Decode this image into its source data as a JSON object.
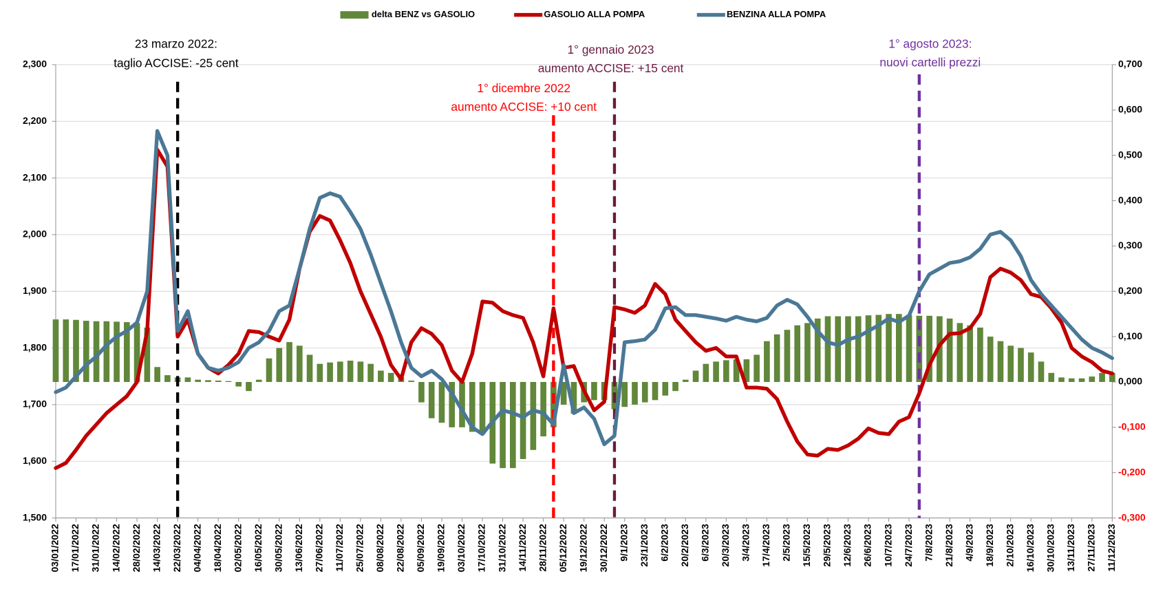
{
  "chart_data": {
    "type": "line-bar",
    "categories": [
      "03/01/2022",
      null,
      "17/01/2022",
      null,
      "31/01/2022",
      null,
      "14/02/2022",
      null,
      "28/02/2022",
      null,
      "14/03/2022",
      null,
      "22/03/2022",
      null,
      "04/04/2022",
      null,
      "18/04/2022",
      null,
      "02/05/2022",
      null,
      "16/05/2022",
      null,
      "30/05/2022",
      null,
      "13/06/2022",
      null,
      "27/06/2022",
      null,
      "11/07/2022",
      null,
      "25/07/2022",
      null,
      "08/08/2022",
      null,
      "22/08/2022",
      null,
      "05/09/2022",
      null,
      "19/09/2022",
      null,
      "03/10/2022",
      null,
      "17/10/2022",
      null,
      "31/10/2022",
      null,
      "14/11/2022",
      null,
      "28/11/2022",
      null,
      "05/12/2022",
      null,
      "19/12/2022",
      null,
      "30/12/2022",
      null,
      "9/1/2023",
      null,
      "23/1/2023",
      null,
      "6/2/2023",
      null,
      "20/2/2023",
      null,
      "6/3/2023",
      null,
      "20/3/2023",
      null,
      "3/4/2023",
      null,
      "17/4/2023",
      null,
      "2/5/2023",
      null,
      "15/5/2023",
      null,
      "29/5/2023",
      null,
      "12/6/2023",
      null,
      "26/6/2023",
      null,
      "10/7/2023",
      null,
      "24/7/2023",
      null,
      "7/8/2023",
      null,
      "21/8/2023",
      null,
      "4/9/2023",
      null,
      "18/9/2023",
      null,
      "2/10/2023",
      null,
      "16/10/2023",
      null,
      "30/10/2023",
      null,
      "13/11/2023",
      null,
      "27/11/2023",
      null,
      "11/12/2023"
    ],
    "series": [
      {
        "name": "delta BENZ vs GASOLIO",
        "kind": "bar",
        "axis": "y2",
        "color": "#61873a",
        "values": [
          0.138,
          0.138,
          0.137,
          0.135,
          0.134,
          0.134,
          0.133,
          0.132,
          0.13,
          0.12,
          0.033,
          0.015,
          0.01,
          0.01,
          0.005,
          0.004,
          0.003,
          0.002,
          -0.01,
          -0.02,
          0.005,
          0.052,
          0.075,
          0.088,
          0.08,
          0.06,
          0.04,
          0.043,
          0.045,
          0.047,
          0.045,
          0.04,
          0.025,
          0.02,
          0.01,
          0.003,
          -0.045,
          -0.08,
          -0.09,
          -0.1,
          -0.1,
          -0.11,
          -0.115,
          -0.18,
          -0.19,
          -0.19,
          -0.17,
          -0.15,
          -0.12,
          -0.1,
          -0.05,
          -0.07,
          -0.045,
          -0.04,
          -0.04,
          -0.06,
          -0.055,
          -0.05,
          -0.045,
          -0.04,
          -0.03,
          -0.02,
          0.005,
          0.025,
          0.04,
          0.045,
          0.048,
          0.05,
          0.05,
          0.06,
          0.09,
          0.105,
          0.115,
          0.125,
          0.13,
          0.14,
          0.145,
          0.145,
          0.145,
          0.145,
          0.147,
          0.148,
          0.15,
          0.15,
          0.148,
          0.146,
          0.146,
          0.145,
          0.14,
          0.13,
          0.125,
          0.12,
          0.1,
          0.09,
          0.08,
          0.075,
          0.065,
          0.045,
          0.02,
          0.01,
          0.008,
          0.008,
          0.012,
          0.02,
          0.02
        ]
      },
      {
        "name": "GASOLIO ALLA POMPA",
        "kind": "line",
        "axis": "y",
        "color": "#c00000",
        "values": [
          1.588,
          1.597,
          1.62,
          1.645,
          1.665,
          1.685,
          1.7,
          1.715,
          1.74,
          1.83,
          2.15,
          2.12,
          1.82,
          1.85,
          1.79,
          1.765,
          1.755,
          1.77,
          1.79,
          1.83,
          1.828,
          1.82,
          1.813,
          1.85,
          1.94,
          2.005,
          2.033,
          2.025,
          1.99,
          1.95,
          1.9,
          1.86,
          1.82,
          1.77,
          1.745,
          1.81,
          1.835,
          1.825,
          1.805,
          1.76,
          1.74,
          1.79,
          1.882,
          1.88,
          1.865,
          1.858,
          1.853,
          1.81,
          1.75,
          1.87,
          1.765,
          1.768,
          1.725,
          1.69,
          1.705,
          1.872,
          1.868,
          1.862,
          1.875,
          1.913,
          1.895,
          1.85,
          1.83,
          1.81,
          1.795,
          1.8,
          1.785,
          1.785,
          1.73,
          1.73,
          1.728,
          1.71,
          1.67,
          1.635,
          1.612,
          1.61,
          1.622,
          1.62,
          1.628,
          1.64,
          1.658,
          1.65,
          1.648,
          1.67,
          1.678,
          1.72,
          1.77,
          1.805,
          1.825,
          1.826,
          1.835,
          1.86,
          1.925,
          1.94,
          1.933,
          1.92,
          1.895,
          1.89,
          1.87,
          1.845,
          1.8,
          1.785,
          1.775,
          1.76,
          1.755
        ]
      },
      {
        "name": "BENZINA ALLA POMPA",
        "kind": "line",
        "axis": "y",
        "color": "#4a7896",
        "values": [
          1.722,
          1.73,
          1.75,
          1.77,
          1.785,
          1.805,
          1.82,
          1.83,
          1.845,
          1.9,
          2.183,
          2.14,
          1.83,
          1.865,
          1.79,
          1.765,
          1.76,
          1.765,
          1.775,
          1.8,
          1.81,
          1.83,
          1.865,
          1.875,
          1.94,
          2.01,
          2.065,
          2.073,
          2.067,
          2.04,
          2.01,
          1.965,
          1.915,
          1.865,
          1.81,
          1.765,
          1.75,
          1.76,
          1.745,
          1.72,
          1.69,
          1.66,
          1.648,
          1.67,
          1.69,
          1.685,
          1.678,
          1.69,
          1.685,
          1.665,
          1.77,
          1.685,
          1.695,
          1.675,
          1.63,
          1.645,
          1.81,
          1.812,
          1.815,
          1.832,
          1.87,
          1.872,
          1.858,
          1.858,
          1.855,
          1.852,
          1.848,
          1.855,
          1.85,
          1.847,
          1.853,
          1.875,
          1.885,
          1.877,
          1.855,
          1.83,
          1.81,
          1.805,
          1.815,
          1.82,
          1.83,
          1.84,
          1.852,
          1.846,
          1.857,
          1.9,
          1.93,
          1.94,
          1.95,
          1.953,
          1.96,
          1.975,
          2.0,
          2.005,
          1.99,
          1.962,
          1.92,
          1.895,
          1.875,
          1.855,
          1.835,
          1.815,
          1.8,
          1.792,
          1.782
        ]
      }
    ],
    "ylim": [
      1.5,
      2.3
    ],
    "yticks": [
      {
        "value": 1.5,
        "label": "1,500"
      },
      {
        "value": 1.6,
        "label": "1,600"
      },
      {
        "value": 1.7,
        "label": "1,700"
      },
      {
        "value": 1.8,
        "label": "1,800"
      },
      {
        "value": 1.9,
        "label": "1,900"
      },
      {
        "value": 2.0,
        "label": "2,000"
      },
      {
        "value": 2.1,
        "label": "2,100"
      },
      {
        "value": 2.2,
        "label": "2,200"
      },
      {
        "value": 2.3,
        "label": "2,300"
      }
    ],
    "y2lim": [
      -0.3,
      0.7
    ],
    "y2ticks": [
      {
        "value": -0.3,
        "label": "-0,300"
      },
      {
        "value": -0.2,
        "label": "-0,200"
      },
      {
        "value": -0.1,
        "label": "-0,100"
      },
      {
        "value": 0,
        "label": "0,000"
      },
      {
        "value": 0.1,
        "label": "0,100"
      },
      {
        "value": 0.2,
        "label": "0,200"
      },
      {
        "value": 0.3,
        "label": "0,300"
      },
      {
        "value": 0.4,
        "label": "0,400"
      },
      {
        "value": 0.5,
        "label": "0,500"
      },
      {
        "value": 0.6,
        "label": "0,600"
      },
      {
        "value": 0.7,
        "label": "0,700"
      }
    ],
    "negative_tick_color": "#ff0000",
    "grid": true,
    "legend": "top",
    "annotations": [
      {
        "lines": [
          "23 marzo 2022:",
          "taglio ACCISE: -25 cent"
        ],
        "color": "#000000"
      },
      {
        "lines": [
          "1° dicembre 2022",
          "aumento ACCISE: +10 cent"
        ],
        "color": "#ff0000"
      },
      {
        "lines": [
          "1° gennaio 2023",
          "aumento ACCISE: +15 cent"
        ],
        "color": "#6b1a3f"
      },
      {
        "lines": [
          "1° agosto 2023:",
          "nuovi cartelli prezzi"
        ],
        "color": "#7030a0"
      }
    ]
  }
}
